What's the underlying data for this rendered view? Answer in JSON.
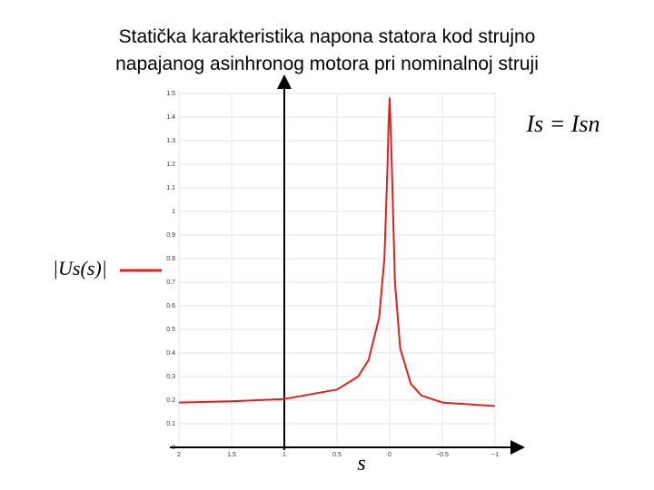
{
  "chart_data": {
    "type": "line",
    "title": "Statička karakteristika napona statora kod strujno\nnapajanog asinhronog motora pri nominalnoj struji",
    "annotation": "Is = Isn",
    "xlabel": "s",
    "x": [
      2,
      1.5,
      1,
      0.5,
      0.3,
      0.2,
      0.1,
      0.05,
      0.02,
      0.01,
      0,
      -0.01,
      -0.02,
      -0.05,
      -0.1,
      -0.2,
      -0.3,
      -0.5,
      -1
    ],
    "series": [
      {
        "name": "|Us(s)|",
        "color": "#e02020",
        "values": [
          0.19,
          0.195,
          0.205,
          0.245,
          0.3,
          0.37,
          0.55,
          0.8,
          1.2,
          1.38,
          1.48,
          1.35,
          1.2,
          0.7,
          0.42,
          0.27,
          0.22,
          0.19,
          0.175
        ]
      }
    ],
    "xlim": [
      2,
      -1
    ],
    "xticks": [
      2,
      1.5,
      1,
      0.5,
      0,
      {
        "value": -0.5,
        "label": "−0.5"
      },
      {
        "value": -1,
        "label": "−1"
      }
    ],
    "ylim": [
      0,
      1.5
    ],
    "yticks": [
      0,
      0.1,
      0.2,
      0.3,
      0.4,
      0.5,
      0.6,
      0.7,
      0.8,
      0.9,
      1,
      1.1,
      1.2,
      1.3,
      1.4,
      1.5
    ],
    "grid": true
  }
}
